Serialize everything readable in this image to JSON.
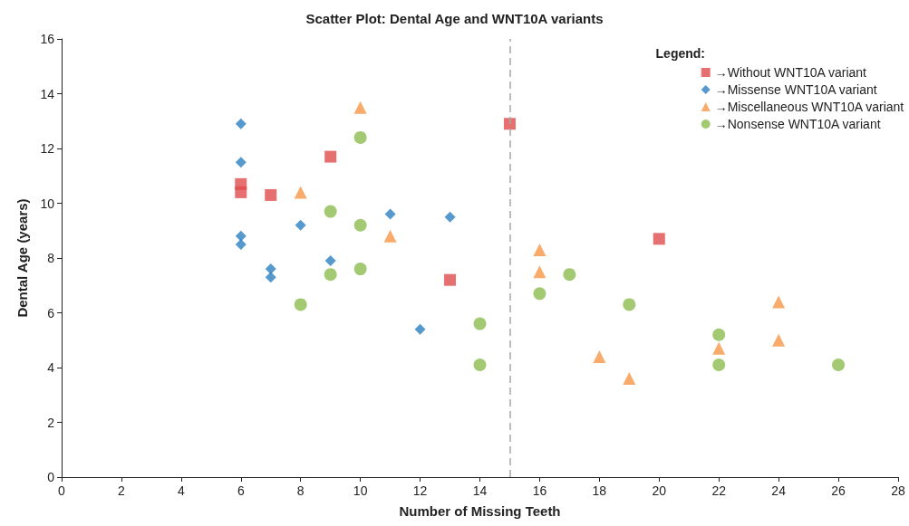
{
  "chart_data": {
    "type": "scatter",
    "title": "Scatter Plot: Dental Age and WNT10A variants",
    "xlabel": "Number of Missing Teeth",
    "ylabel": "Dental Age (years)",
    "legend_title": "Legend:",
    "legend": "top right",
    "grid": false,
    "xlim": [
      0,
      28
    ],
    "xticks": [
      0,
      2,
      4,
      6,
      8,
      10,
      12,
      14,
      16,
      18,
      20,
      22,
      24,
      26,
      28
    ],
    "ylim": [
      0,
      16
    ],
    "yticks": [
      0,
      2,
      4,
      6,
      8,
      10,
      12,
      14,
      16
    ],
    "ref_lines": [
      {
        "axis": "x",
        "value": 15,
        "color": "#a6a6a6",
        "line_style": "dashed"
      }
    ],
    "series": [
      {
        "name": "→Without WNT10A variant",
        "color": "#e04c4c",
        "marker": "square",
        "x": [
          6,
          6,
          7,
          9,
          15,
          13,
          20
        ],
        "values": [
          10.7,
          10.4,
          10.3,
          11.7,
          12.9,
          7.2,
          8.7
        ]
      },
      {
        "name": "→Missense WNT10A variant",
        "color": "#2a7fc1",
        "marker": "diamond",
        "x": [
          6,
          6,
          6,
          6,
          7,
          7,
          8,
          9,
          11,
          13,
          12
        ],
        "values": [
          12.9,
          11.5,
          8.8,
          8.5,
          7.6,
          7.3,
          9.2,
          7.9,
          9.6,
          9.5,
          5.4
        ]
      },
      {
        "name": "→Miscellaneous WNT10A variant",
        "color": "#f79646",
        "marker": "triangle",
        "x": [
          10,
          8,
          11,
          16,
          16,
          18,
          19,
          22,
          24,
          24
        ],
        "values": [
          13.5,
          10.4,
          8.8,
          8.3,
          7.5,
          4.4,
          3.6,
          4.7,
          6.4,
          5.0
        ]
      },
      {
        "name": "→Nonsense WNT10A variant",
        "color": "#8cbd50",
        "marker": "circle",
        "x": [
          10,
          9,
          10,
          9,
          10,
          8,
          14,
          14,
          16,
          17,
          19,
          22,
          22,
          26
        ],
        "values": [
          12.4,
          9.7,
          9.2,
          7.4,
          7.6,
          6.3,
          5.6,
          4.1,
          6.7,
          7.4,
          6.3,
          5.2,
          4.1,
          4.1
        ]
      }
    ]
  }
}
